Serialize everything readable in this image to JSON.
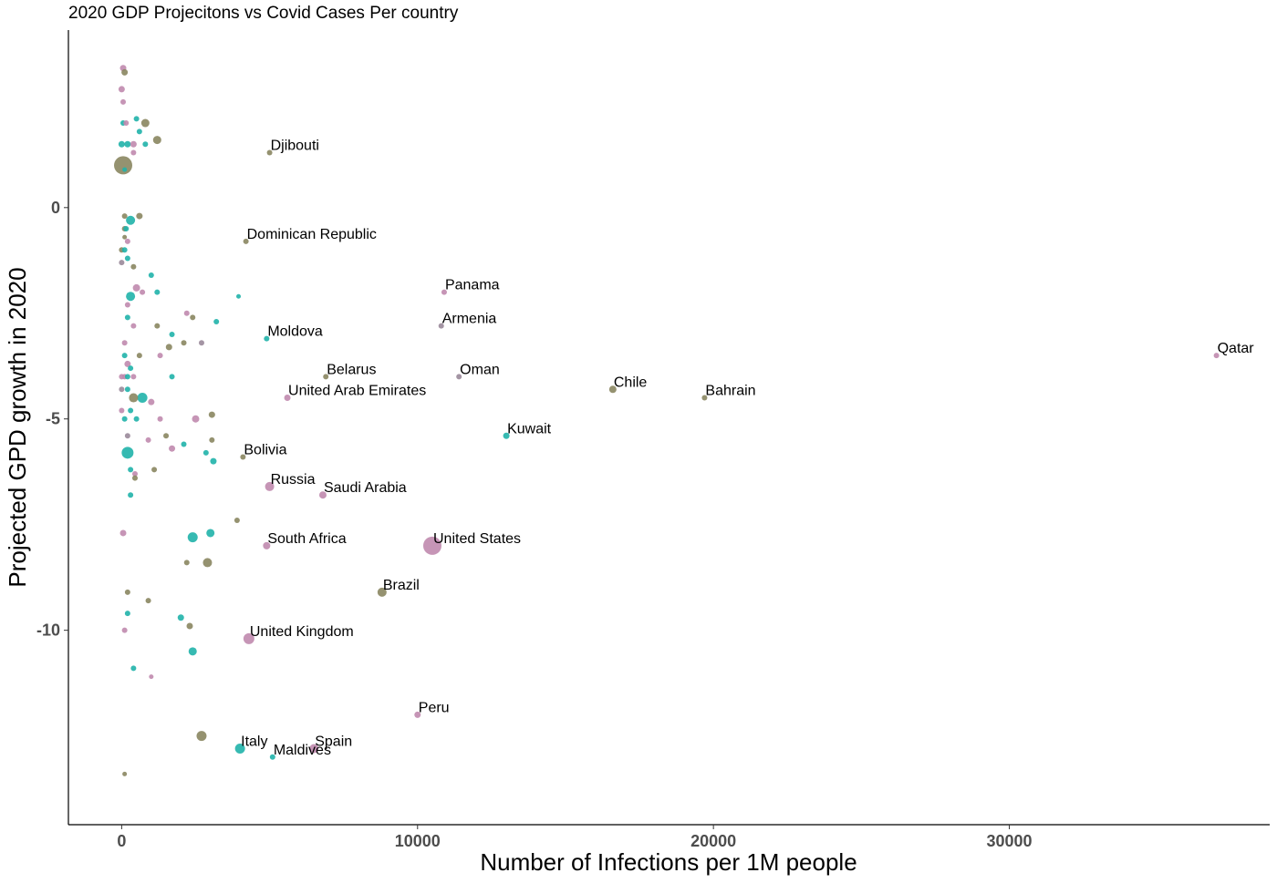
{
  "chart_data": {
    "type": "scatter",
    "title": "2020 GDP Projecitons vs Covid Cases Per country",
    "xlabel": "Number of Infections per 1M people",
    "ylabel": "Projected GPD growth in 2020",
    "xlim": [
      -1800,
      38800
    ],
    "ylim": [
      -14.6,
      4.2
    ],
    "x_ticks": [
      0,
      10000,
      20000,
      30000
    ],
    "x_tick_labels": [
      "0",
      "10000",
      "20000",
      "30000"
    ],
    "y_ticks": [
      0,
      -5,
      -10
    ],
    "y_tick_labels": [
      "0",
      "-5",
      "-10"
    ],
    "grid": false,
    "legend": "none",
    "colors": {
      "pink": "#c08aae",
      "teal": "#20b2aa",
      "olive": "#8a8660",
      "gray": "#9a8a9a"
    },
    "points": [
      {
        "x": 5000,
        "y": 1.3,
        "label": "Djibouti",
        "color": "olive",
        "size": 3
      },
      {
        "x": 4200,
        "y": -0.8,
        "label": "Dominican Republic",
        "color": "olive",
        "size": 3
      },
      {
        "x": 10900,
        "y": -2.0,
        "label": "Panama",
        "color": "pink",
        "size": 3
      },
      {
        "x": 10800,
        "y": -2.8,
        "label": "Armenia",
        "color": "gray",
        "size": 3
      },
      {
        "x": 4900,
        "y": -3.1,
        "label": "Moldova",
        "color": "teal",
        "size": 3
      },
      {
        "x": 6900,
        "y": -4.0,
        "label": "Belarus",
        "color": "olive",
        "size": 3
      },
      {
        "x": 11400,
        "y": -4.0,
        "label": "Oman",
        "color": "gray",
        "size": 3
      },
      {
        "x": 37000,
        "y": -3.5,
        "label": "Qatar",
        "color": "pink",
        "size": 3
      },
      {
        "x": 16600,
        "y": -4.3,
        "label": "Chile",
        "color": "olive",
        "size": 4
      },
      {
        "x": 19700,
        "y": -4.5,
        "label": "Bahrain",
        "color": "olive",
        "size": 3
      },
      {
        "x": 5600,
        "y": -4.5,
        "label": "United Arab Emirates",
        "color": "pink",
        "size": 3.5
      },
      {
        "x": 13000,
        "y": -5.4,
        "label": "Kuwait",
        "color": "teal",
        "size": 3.5
      },
      {
        "x": 4100,
        "y": -5.9,
        "label": "Bolivia",
        "color": "olive",
        "size": 3
      },
      {
        "x": 5000,
        "y": -6.6,
        "label": "Russia",
        "color": "pink",
        "size": 5
      },
      {
        "x": 6800,
        "y": -6.8,
        "label": "Saudi Arabia",
        "color": "pink",
        "size": 4
      },
      {
        "x": 4900,
        "y": -8.0,
        "label": "South Africa",
        "color": "pink",
        "size": 4
      },
      {
        "x": 10500,
        "y": -8.0,
        "label": "United States",
        "color": "pink",
        "size": 10
      },
      {
        "x": 8800,
        "y": -9.1,
        "label": "Brazil",
        "color": "olive",
        "size": 5
      },
      {
        "x": 4300,
        "y": -10.2,
        "label": "United Kingdom",
        "color": "pink",
        "size": 6
      },
      {
        "x": 10000,
        "y": -12.0,
        "label": "Peru",
        "color": "pink",
        "size": 3.5
      },
      {
        "x": 4000,
        "y": -12.8,
        "label": "Italy",
        "color": "teal",
        "size": 5.5
      },
      {
        "x": 5100,
        "y": -13.0,
        "label": "Maldives",
        "color": "teal",
        "size": 3
      },
      {
        "x": 6500,
        "y": -12.8,
        "label": "Spain",
        "color": "pink",
        "size": 5
      },
      {
        "x": 50,
        "y": 3.3,
        "color": "pink",
        "size": 3.5
      },
      {
        "x": 100,
        "y": 3.2,
        "color": "olive",
        "size": 3.5
      },
      {
        "x": 0,
        "y": 2.8,
        "color": "pink",
        "size": 3.5
      },
      {
        "x": 50,
        "y": 2.5,
        "color": "pink",
        "size": 3
      },
      {
        "x": 50,
        "y": 2.0,
        "color": "teal",
        "size": 3
      },
      {
        "x": 150,
        "y": 2.0,
        "color": "pink",
        "size": 3
      },
      {
        "x": 500,
        "y": 2.1,
        "color": "teal",
        "size": 3
      },
      {
        "x": 800,
        "y": 2.0,
        "color": "olive",
        "size": 4.5
      },
      {
        "x": 0,
        "y": 1.5,
        "color": "teal",
        "size": 3.5
      },
      {
        "x": 200,
        "y": 1.5,
        "color": "teal",
        "size": 3.5
      },
      {
        "x": 400,
        "y": 1.5,
        "color": "pink",
        "size": 3.5
      },
      {
        "x": 800,
        "y": 1.5,
        "color": "teal",
        "size": 3
      },
      {
        "x": 1200,
        "y": 1.6,
        "color": "olive",
        "size": 4.5
      },
      {
        "x": 600,
        "y": 1.8,
        "color": "teal",
        "size": 3
      },
      {
        "x": 400,
        "y": 1.3,
        "color": "pink",
        "size": 3
      },
      {
        "x": 50,
        "y": 1.0,
        "color": "olive",
        "size": 10
      },
      {
        "x": 100,
        "y": 0.9,
        "color": "teal",
        "size": 2.5
      },
      {
        "x": 100,
        "y": -0.2,
        "color": "olive",
        "size": 3
      },
      {
        "x": 300,
        "y": -0.3,
        "color": "teal",
        "size": 5
      },
      {
        "x": 600,
        "y": -0.2,
        "color": "olive",
        "size": 3.5
      },
      {
        "x": 100,
        "y": -0.5,
        "color": "olive",
        "size": 3
      },
      {
        "x": 150,
        "y": -0.5,
        "color": "teal",
        "size": 3
      },
      {
        "x": 100,
        "y": -0.7,
        "color": "olive",
        "size": 2.5
      },
      {
        "x": 200,
        "y": -0.8,
        "color": "pink",
        "size": 3
      },
      {
        "x": 0,
        "y": -1.0,
        "color": "olive",
        "size": 3
      },
      {
        "x": 100,
        "y": -1.0,
        "color": "teal",
        "size": 3
      },
      {
        "x": 200,
        "y": -1.2,
        "color": "teal",
        "size": 3
      },
      {
        "x": 0,
        "y": -1.3,
        "color": "gray",
        "size": 3
      },
      {
        "x": 400,
        "y": -1.4,
        "color": "olive",
        "size": 3
      },
      {
        "x": 1000,
        "y": -1.6,
        "color": "teal",
        "size": 3
      },
      {
        "x": 500,
        "y": -1.9,
        "color": "pink",
        "size": 4
      },
      {
        "x": 300,
        "y": -2.1,
        "color": "teal",
        "size": 5
      },
      {
        "x": 700,
        "y": -2.0,
        "color": "pink",
        "size": 3
      },
      {
        "x": 1200,
        "y": -2.0,
        "color": "teal",
        "size": 3
      },
      {
        "x": 3950,
        "y": -2.1,
        "color": "teal",
        "size": 2.5
      },
      {
        "x": 200,
        "y": -2.3,
        "color": "pink",
        "size": 3
      },
      {
        "x": 200,
        "y": -2.6,
        "color": "teal",
        "size": 3
      },
      {
        "x": 400,
        "y": -2.8,
        "color": "pink",
        "size": 3
      },
      {
        "x": 1200,
        "y": -2.8,
        "color": "olive",
        "size": 3
      },
      {
        "x": 2200,
        "y": -2.5,
        "color": "pink",
        "size": 3
      },
      {
        "x": 2400,
        "y": -2.6,
        "color": "olive",
        "size": 3
      },
      {
        "x": 3200,
        "y": -2.7,
        "color": "teal",
        "size": 3
      },
      {
        "x": 1700,
        "y": -3.0,
        "color": "teal",
        "size": 3
      },
      {
        "x": 100,
        "y": -3.2,
        "color": "pink",
        "size": 3
      },
      {
        "x": 1600,
        "y": -3.3,
        "color": "olive",
        "size": 3.5
      },
      {
        "x": 2100,
        "y": -3.2,
        "color": "olive",
        "size": 3
      },
      {
        "x": 2700,
        "y": -3.2,
        "color": "gray",
        "size": 3
      },
      {
        "x": 100,
        "y": -3.5,
        "color": "teal",
        "size": 3
      },
      {
        "x": 600,
        "y": -3.5,
        "color": "olive",
        "size": 3
      },
      {
        "x": 1300,
        "y": -3.5,
        "color": "pink",
        "size": 3
      },
      {
        "x": 200,
        "y": -3.7,
        "color": "pink",
        "size": 3.5
      },
      {
        "x": 300,
        "y": -3.8,
        "color": "teal",
        "size": 3
      },
      {
        "x": 0,
        "y": -4.0,
        "color": "pink",
        "size": 3
      },
      {
        "x": 100,
        "y": -4.0,
        "color": "pink",
        "size": 3
      },
      {
        "x": 200,
        "y": -4.0,
        "color": "teal",
        "size": 3
      },
      {
        "x": 400,
        "y": -4.0,
        "color": "pink",
        "size": 3
      },
      {
        "x": 1700,
        "y": -4.0,
        "color": "teal",
        "size": 3
      },
      {
        "x": 0,
        "y": -4.3,
        "color": "gray",
        "size": 3
      },
      {
        "x": 200,
        "y": -4.3,
        "color": "teal",
        "size": 3
      },
      {
        "x": 400,
        "y": -4.5,
        "color": "olive",
        "size": 5
      },
      {
        "x": 700,
        "y": -4.5,
        "color": "teal",
        "size": 5.5
      },
      {
        "x": 1000,
        "y": -4.6,
        "color": "pink",
        "size": 3.5
      },
      {
        "x": 0,
        "y": -4.8,
        "color": "pink",
        "size": 3
      },
      {
        "x": 300,
        "y": -4.8,
        "color": "teal",
        "size": 3
      },
      {
        "x": 100,
        "y": -5.0,
        "color": "teal",
        "size": 3
      },
      {
        "x": 500,
        "y": -5.0,
        "color": "teal",
        "size": 3
      },
      {
        "x": 1300,
        "y": -5.0,
        "color": "pink",
        "size": 3
      },
      {
        "x": 2500,
        "y": -5.0,
        "color": "pink",
        "size": 4
      },
      {
        "x": 3050,
        "y": -4.9,
        "color": "olive",
        "size": 3.5
      },
      {
        "x": 200,
        "y": -5.4,
        "color": "gray",
        "size": 3
      },
      {
        "x": 900,
        "y": -5.5,
        "color": "pink",
        "size": 3
      },
      {
        "x": 1500,
        "y": -5.4,
        "color": "olive",
        "size": 3
      },
      {
        "x": 1700,
        "y": -5.7,
        "color": "pink",
        "size": 3.5
      },
      {
        "x": 2100,
        "y": -5.6,
        "color": "teal",
        "size": 3
      },
      {
        "x": 3050,
        "y": -5.5,
        "color": "olive",
        "size": 3
      },
      {
        "x": 200,
        "y": -5.8,
        "color": "teal",
        "size": 6.5
      },
      {
        "x": 2850,
        "y": -5.8,
        "color": "teal",
        "size": 3
      },
      {
        "x": 3100,
        "y": -6.0,
        "color": "teal",
        "size": 3.5
      },
      {
        "x": 300,
        "y": -6.2,
        "color": "teal",
        "size": 3
      },
      {
        "x": 450,
        "y": -6.3,
        "color": "pink",
        "size": 3
      },
      {
        "x": 450,
        "y": -6.4,
        "color": "olive",
        "size": 3
      },
      {
        "x": 1100,
        "y": -6.2,
        "color": "olive",
        "size": 3
      },
      {
        "x": 300,
        "y": -6.8,
        "color": "teal",
        "size": 3
      },
      {
        "x": 3900,
        "y": -7.4,
        "color": "olive",
        "size": 3
      },
      {
        "x": 50,
        "y": -7.7,
        "color": "pink",
        "size": 3.5
      },
      {
        "x": 2400,
        "y": -7.8,
        "color": "teal",
        "size": 5.5
      },
      {
        "x": 3000,
        "y": -7.7,
        "color": "teal",
        "size": 4.5
      },
      {
        "x": 2200,
        "y": -8.4,
        "color": "olive",
        "size": 3
      },
      {
        "x": 2900,
        "y": -8.4,
        "color": "olive",
        "size": 5
      },
      {
        "x": 200,
        "y": -9.1,
        "color": "olive",
        "size": 3
      },
      {
        "x": 900,
        "y": -9.3,
        "color": "olive",
        "size": 3
      },
      {
        "x": 200,
        "y": -9.6,
        "color": "teal",
        "size": 3
      },
      {
        "x": 2000,
        "y": -9.7,
        "color": "teal",
        "size": 3.5
      },
      {
        "x": 100,
        "y": -10.0,
        "color": "pink",
        "size": 3
      },
      {
        "x": 2300,
        "y": -9.9,
        "color": "olive",
        "size": 3.5
      },
      {
        "x": 2400,
        "y": -10.5,
        "color": "teal",
        "size": 4.5
      },
      {
        "x": 400,
        "y": -10.9,
        "color": "teal",
        "size": 3
      },
      {
        "x": 1000,
        "y": -11.1,
        "color": "pink",
        "size": 2.5
      },
      {
        "x": 2700,
        "y": -12.5,
        "color": "olive",
        "size": 5.5
      },
      {
        "x": 100,
        "y": -13.4,
        "color": "olive",
        "size": 2.5
      }
    ]
  }
}
